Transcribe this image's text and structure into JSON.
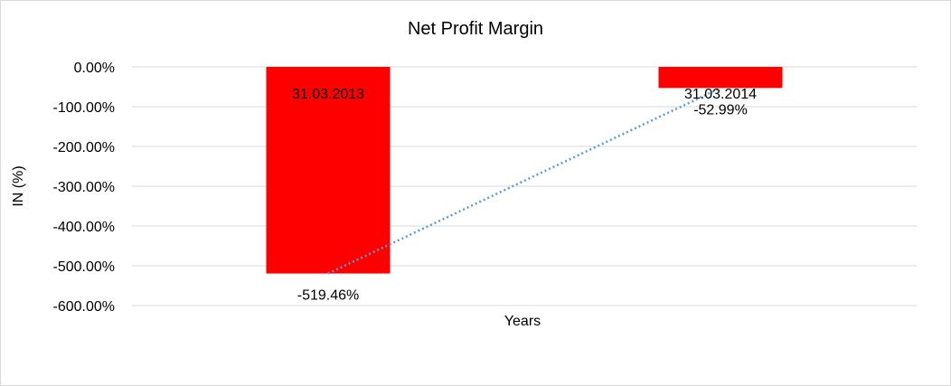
{
  "chart_data": {
    "type": "bar",
    "title": "Net Profit Margin",
    "xlabel": "Years",
    "ylabel": "IN (%)",
    "categories": [
      "31.03.2013",
      "31.03.2014"
    ],
    "series": [
      {
        "values": [
          -519.46,
          -52.99
        ],
        "value_labels": [
          "-519.46%",
          "-52.99%"
        ],
        "color": "#ff0000"
      }
    ],
    "trendline": {
      "style": "dotted",
      "color": "#5b9bd5"
    },
    "ylim": [
      -600,
      0
    ],
    "yticks": [
      0,
      -100,
      -200,
      -300,
      -400,
      -500,
      -600
    ],
    "ytick_labels": [
      "0.00%",
      "-100.00%",
      "-200.00%",
      "-300.00%",
      "-400.00%",
      "-500.00%",
      "-600.00%"
    ],
    "grid": true,
    "legend": "none"
  }
}
